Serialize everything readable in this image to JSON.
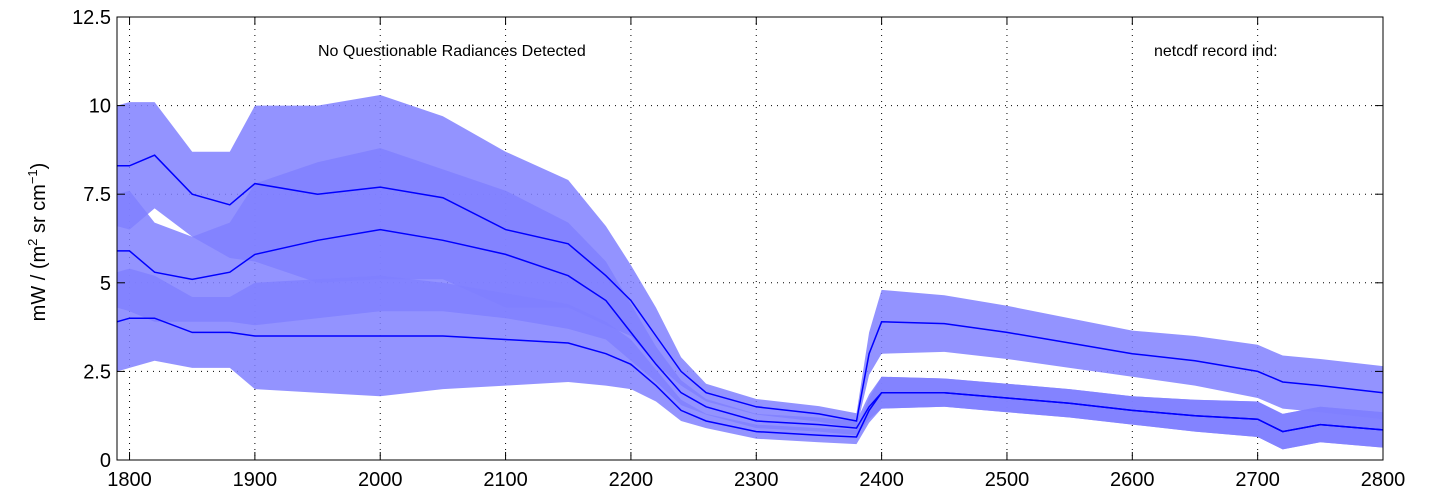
{
  "chart_data": {
    "type": "line",
    "title": "",
    "xlabel": "",
    "ylabel_main": "mW / (m",
    "ylabel_sup1": "2",
    "ylabel_mid": " sr cm",
    "ylabel_sup2": "−1",
    "ylabel_end": ")",
    "xlim": [
      1790,
      2800
    ],
    "ylim": [
      0,
      12.5
    ],
    "x_ticks": [
      1800,
      1900,
      2000,
      2100,
      2200,
      2300,
      2400,
      2500,
      2600,
      2700,
      2800
    ],
    "y_ticks": [
      0,
      2.5,
      5,
      7.5,
      10,
      12.5
    ],
    "x_tick_labels": [
      "1800",
      "1900",
      "2000",
      "2100",
      "2200",
      "2300",
      "2400",
      "2500",
      "2600",
      "2700",
      "2800"
    ],
    "y_tick_labels": [
      "0",
      "2.5",
      "5",
      "7.5",
      "10",
      "12.5"
    ],
    "grid": true,
    "grid_style": "dotted",
    "colors": {
      "line": "#0000ff",
      "band": "#8080ff",
      "axis": "#000000",
      "grid": "#000000"
    },
    "annotations": {
      "left": "No Questionable Radiances Detected",
      "right": "netcdf record ind:"
    },
    "x": [
      1790,
      1800,
      1820,
      1850,
      1880,
      1900,
      1950,
      2000,
      2050,
      2100,
      2150,
      2180,
      2200,
      2220,
      2240,
      2260,
      2300,
      2350,
      2380,
      2390,
      2400,
      2450,
      2500,
      2550,
      2600,
      2650,
      2700,
      2720,
      2750,
      2800
    ],
    "series": [
      {
        "values": [
          8.3,
          8.3,
          8.6,
          7.5,
          7.2,
          7.8,
          7.5,
          7.7,
          7.4,
          6.5,
          6.1,
          5.2,
          4.5,
          3.5,
          2.5,
          1.9,
          1.5,
          1.3,
          1.1,
          3.0,
          3.9,
          3.85,
          3.6,
          3.3,
          3.0,
          2.8,
          2.5,
          2.2,
          2.1,
          1.9
        ],
        "band": [
          1.7,
          1.8,
          1.5,
          1.2,
          1.5,
          2.2,
          2.5,
          2.6,
          2.3,
          2.2,
          1.8,
          1.4,
          1.0,
          0.8,
          0.4,
          0.25,
          0.22,
          0.22,
          0.22,
          0.6,
          0.9,
          0.8,
          0.75,
          0.7,
          0.65,
          0.7,
          0.75,
          0.75,
          0.75,
          0.75
        ]
      },
      {
        "values": [
          5.9,
          5.9,
          5.3,
          5.1,
          5.3,
          5.8,
          6.2,
          6.5,
          6.2,
          5.8,
          5.2,
          4.5,
          3.6,
          2.7,
          1.9,
          1.5,
          1.1,
          1.0,
          0.9,
          1.5,
          1.9,
          1.9,
          1.75,
          1.6,
          1.4,
          1.25,
          1.15,
          0.8,
          1.0,
          0.85
        ],
        "band": [
          1.6,
          1.7,
          1.4,
          1.2,
          1.4,
          2.0,
          2.2,
          2.3,
          2.0,
          1.8,
          1.5,
          1.1,
          0.8,
          0.5,
          0.35,
          0.22,
          0.2,
          0.2,
          0.2,
          0.35,
          0.45,
          0.4,
          0.4,
          0.4,
          0.4,
          0.45,
          0.5,
          0.5,
          0.5,
          0.5
        ]
      },
      {
        "values": [
          3.9,
          4.0,
          4.0,
          3.6,
          3.6,
          3.5,
          3.5,
          3.5,
          3.5,
          3.4,
          3.3,
          3.0,
          2.7,
          2.1,
          1.4,
          1.1,
          0.8,
          0.7,
          0.65,
          1.4,
          1.9,
          1.9,
          1.75,
          1.6,
          1.4,
          1.25,
          1.15,
          0.8,
          1.0,
          0.85
        ],
        "band": [
          1.4,
          1.4,
          1.2,
          1.0,
          1.0,
          1.5,
          1.6,
          1.7,
          1.5,
          1.3,
          1.1,
          0.9,
          0.7,
          0.45,
          0.3,
          0.2,
          0.2,
          0.2,
          0.2,
          0.35,
          0.45,
          0.4,
          0.4,
          0.4,
          0.4,
          0.45,
          0.5,
          0.5,
          0.5,
          0.5
        ]
      }
    ]
  }
}
